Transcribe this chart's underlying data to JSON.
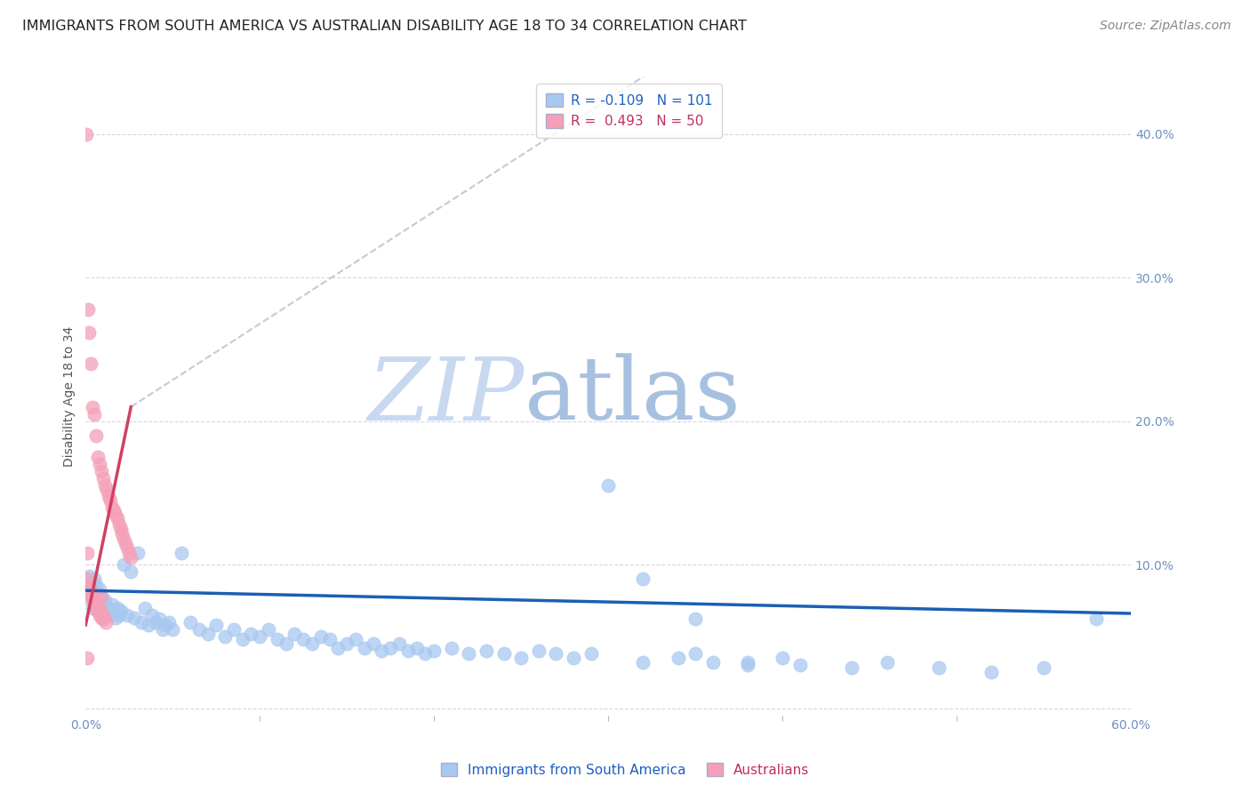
{
  "title": "IMMIGRANTS FROM SOUTH AMERICA VS AUSTRALIAN DISABILITY AGE 18 TO 34 CORRELATION CHART",
  "source": "Source: ZipAtlas.com",
  "ylabel": "Disability Age 18 to 34",
  "xlim": [
    0.0,
    0.6
  ],
  "ylim": [
    -0.005,
    0.44
  ],
  "blue_R": -0.109,
  "blue_N": 101,
  "pink_R": 0.493,
  "pink_N": 50,
  "blue_color": "#a8c8f0",
  "pink_color": "#f4a0b8",
  "blue_line_color": "#1a5fb4",
  "pink_line_color": "#d04060",
  "pink_dash_color": "#c8c8d8",
  "watermark_zip_color": "#c8d8f0",
  "watermark_atlas_color": "#b0c8e8",
  "grid_color": "#d0d8e8",
  "background_color": "#ffffff",
  "legend_label_blue": "Immigrants from South America",
  "legend_label_pink": "Australians",
  "title_fontsize": 11.5,
  "source_fontsize": 10,
  "axis_label_fontsize": 10,
  "tick_fontsize": 10,
  "legend_fontsize": 11,
  "blue_x": [
    0.001,
    0.002,
    0.002,
    0.003,
    0.003,
    0.004,
    0.004,
    0.005,
    0.005,
    0.006,
    0.006,
    0.007,
    0.007,
    0.008,
    0.008,
    0.009,
    0.009,
    0.01,
    0.01,
    0.011,
    0.011,
    0.012,
    0.013,
    0.014,
    0.015,
    0.016,
    0.017,
    0.018,
    0.019,
    0.02,
    0.022,
    0.024,
    0.026,
    0.028,
    0.03,
    0.032,
    0.034,
    0.036,
    0.038,
    0.04,
    0.042,
    0.044,
    0.046,
    0.048,
    0.05,
    0.055,
    0.06,
    0.065,
    0.07,
    0.075,
    0.08,
    0.085,
    0.09,
    0.095,
    0.1,
    0.105,
    0.11,
    0.115,
    0.12,
    0.125,
    0.13,
    0.135,
    0.14,
    0.145,
    0.15,
    0.155,
    0.16,
    0.165,
    0.17,
    0.175,
    0.18,
    0.185,
    0.19,
    0.195,
    0.2,
    0.21,
    0.22,
    0.23,
    0.24,
    0.25,
    0.26,
    0.27,
    0.28,
    0.29,
    0.3,
    0.32,
    0.34,
    0.36,
    0.38,
    0.4,
    0.32,
    0.35,
    0.38,
    0.41,
    0.44,
    0.46,
    0.49,
    0.52,
    0.55,
    0.58,
    0.35
  ],
  "blue_y": [
    0.08,
    0.085,
    0.092,
    0.075,
    0.088,
    0.07,
    0.082,
    0.078,
    0.09,
    0.073,
    0.086,
    0.068,
    0.08,
    0.075,
    0.083,
    0.07,
    0.077,
    0.072,
    0.068,
    0.075,
    0.065,
    0.07,
    0.068,
    0.065,
    0.072,
    0.068,
    0.063,
    0.07,
    0.065,
    0.068,
    0.1,
    0.065,
    0.095,
    0.063,
    0.108,
    0.06,
    0.07,
    0.058,
    0.065,
    0.06,
    0.062,
    0.055,
    0.058,
    0.06,
    0.055,
    0.108,
    0.06,
    0.055,
    0.052,
    0.058,
    0.05,
    0.055,
    0.048,
    0.052,
    0.05,
    0.055,
    0.048,
    0.045,
    0.052,
    0.048,
    0.045,
    0.05,
    0.048,
    0.042,
    0.045,
    0.048,
    0.042,
    0.045,
    0.04,
    0.042,
    0.045,
    0.04,
    0.042,
    0.038,
    0.04,
    0.042,
    0.038,
    0.04,
    0.038,
    0.035,
    0.04,
    0.038,
    0.035,
    0.038,
    0.155,
    0.032,
    0.035,
    0.032,
    0.03,
    0.035,
    0.09,
    0.038,
    0.032,
    0.03,
    0.028,
    0.032,
    0.028,
    0.025,
    0.028,
    0.062,
    0.062
  ],
  "pink_x": [
    0.0005,
    0.001,
    0.001,
    0.0015,
    0.002,
    0.002,
    0.0025,
    0.003,
    0.003,
    0.0035,
    0.004,
    0.004,
    0.0045,
    0.005,
    0.005,
    0.0055,
    0.006,
    0.006,
    0.0065,
    0.007,
    0.007,
    0.0075,
    0.008,
    0.008,
    0.0085,
    0.009,
    0.009,
    0.0095,
    0.01,
    0.01,
    0.0105,
    0.011,
    0.0115,
    0.012,
    0.013,
    0.014,
    0.015,
    0.016,
    0.017,
    0.018,
    0.019,
    0.02,
    0.021,
    0.022,
    0.023,
    0.024,
    0.025,
    0.026,
    0.009,
    0.0008
  ],
  "pink_y": [
    0.4,
    0.09,
    0.108,
    0.278,
    0.085,
    0.262,
    0.082,
    0.24,
    0.078,
    0.082,
    0.08,
    0.21,
    0.075,
    0.205,
    0.073,
    0.075,
    0.19,
    0.07,
    0.073,
    0.175,
    0.068,
    0.07,
    0.17,
    0.065,
    0.068,
    0.165,
    0.063,
    0.065,
    0.16,
    0.062,
    0.063,
    0.155,
    0.06,
    0.152,
    0.148,
    0.145,
    0.14,
    0.138,
    0.135,
    0.132,
    0.128,
    0.125,
    0.122,
    0.118,
    0.115,
    0.112,
    0.108,
    0.105,
    0.078,
    0.035
  ]
}
